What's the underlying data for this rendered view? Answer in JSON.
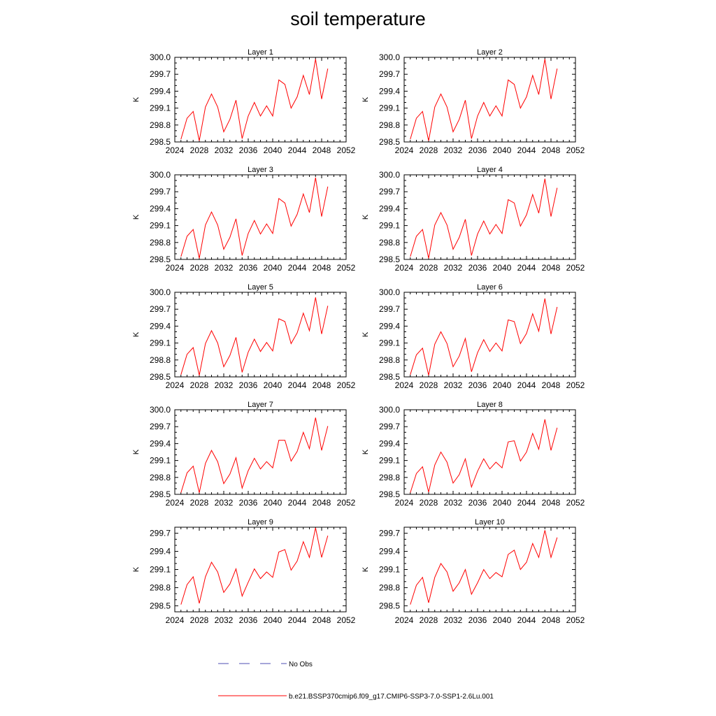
{
  "page": {
    "title": "soil temperature"
  },
  "colors": {
    "model_line": "#ff0000",
    "obs_line": "#4c4cb3",
    "axis": "#000000"
  },
  "legend": {
    "items": [
      {
        "label": "No Obs",
        "style": "dashed",
        "color": "#4c4cb3"
      },
      {
        "label": "b.e21.BSSP370cmip6.f09_g17.CMIP6-SSP3-7.0-SSP1-2.6Lu.001",
        "style": "solid",
        "color": "#ff0000"
      }
    ]
  },
  "chart_data": [
    {
      "type": "line",
      "title": "Layer 1",
      "ylabel": "K",
      "xlim": [
        2024,
        2052
      ],
      "ylim": [
        298.5,
        300.0
      ],
      "xticks": [
        "2024",
        "2028",
        "2032",
        "2036",
        "2040",
        "2044",
        "2048",
        "2052"
      ],
      "yticks": [
        "298.5",
        "298.8",
        "299.1",
        "299.4",
        "299.7",
        "300.0"
      ],
      "series": [
        {
          "x": [
            2025,
            2026,
            2027,
            2028,
            2029,
            2030,
            2031,
            2032,
            2033,
            2034,
            2035,
            2036,
            2037,
            2038,
            2039,
            2040,
            2041,
            2042,
            2043,
            2044,
            2045,
            2046,
            2047,
            2048,
            2049
          ],
          "y": [
            298.55,
            298.92,
            299.04,
            298.52,
            299.12,
            299.35,
            299.12,
            298.68,
            298.9,
            299.24,
            298.56,
            298.96,
            299.2,
            298.96,
            299.14,
            298.96,
            299.6,
            299.52,
            299.1,
            299.3,
            299.68,
            299.34,
            299.97,
            299.26,
            299.8
          ]
        }
      ]
    },
    {
      "type": "line",
      "title": "Layer 2",
      "ylabel": "K",
      "xlim": [
        2024,
        2052
      ],
      "ylim": [
        298.5,
        300.0
      ],
      "xticks": [
        "2024",
        "2028",
        "2032",
        "2036",
        "2040",
        "2044",
        "2048",
        "2052"
      ],
      "yticks": [
        "298.5",
        "298.8",
        "299.1",
        "299.4",
        "299.7",
        "300.0"
      ],
      "series": [
        {
          "x": [
            2025,
            2026,
            2027,
            2028,
            2029,
            2030,
            2031,
            2032,
            2033,
            2034,
            2035,
            2036,
            2037,
            2038,
            2039,
            2040,
            2041,
            2042,
            2043,
            2044,
            2045,
            2046,
            2047,
            2048,
            2049
          ],
          "y": [
            298.55,
            298.92,
            299.04,
            298.52,
            299.12,
            299.35,
            299.12,
            298.68,
            298.9,
            299.24,
            298.56,
            298.96,
            299.2,
            298.96,
            299.14,
            298.96,
            299.6,
            299.52,
            299.1,
            299.3,
            299.68,
            299.34,
            299.97,
            299.26,
            299.8
          ]
        }
      ]
    },
    {
      "type": "line",
      "title": "Layer 3",
      "ylabel": "K",
      "xlim": [
        2024,
        2052
      ],
      "ylim": [
        298.5,
        300.0
      ],
      "xticks": [
        "2024",
        "2028",
        "2032",
        "2036",
        "2040",
        "2044",
        "2048",
        "2052"
      ],
      "yticks": [
        "298.5",
        "298.8",
        "299.1",
        "299.4",
        "299.7",
        "300.0"
      ],
      "series": [
        {
          "x": [
            2025,
            2026,
            2027,
            2028,
            2029,
            2030,
            2031,
            2032,
            2033,
            2034,
            2035,
            2036,
            2037,
            2038,
            2039,
            2040,
            2041,
            2042,
            2043,
            2044,
            2045,
            2046,
            2047,
            2048,
            2049
          ],
          "y": [
            298.55,
            298.91,
            299.03,
            298.52,
            299.11,
            299.34,
            299.11,
            298.68,
            298.89,
            299.22,
            298.57,
            298.96,
            299.19,
            298.95,
            299.13,
            298.96,
            299.58,
            299.5,
            299.09,
            299.3,
            299.66,
            299.33,
            299.95,
            299.26,
            299.79
          ]
        }
      ]
    },
    {
      "type": "line",
      "title": "Layer 4",
      "ylabel": "K",
      "xlim": [
        2024,
        2052
      ],
      "ylim": [
        298.5,
        300.0
      ],
      "xticks": [
        "2024",
        "2028",
        "2032",
        "2036",
        "2040",
        "2044",
        "2048",
        "2052"
      ],
      "yticks": [
        "298.5",
        "298.8",
        "299.1",
        "299.4",
        "299.7",
        "300.0"
      ],
      "series": [
        {
          "x": [
            2025,
            2026,
            2027,
            2028,
            2029,
            2030,
            2031,
            2032,
            2033,
            2034,
            2035,
            2036,
            2037,
            2038,
            2039,
            2040,
            2041,
            2042,
            2043,
            2044,
            2045,
            2046,
            2047,
            2048,
            2049
          ],
          "y": [
            298.55,
            298.91,
            299.03,
            298.52,
            299.11,
            299.33,
            299.11,
            298.68,
            298.89,
            299.21,
            298.57,
            298.95,
            299.18,
            298.95,
            299.12,
            298.96,
            299.56,
            299.5,
            299.09,
            299.29,
            299.65,
            299.32,
            299.93,
            299.26,
            299.77
          ]
        }
      ]
    },
    {
      "type": "line",
      "title": "Layer 5",
      "ylabel": "K",
      "xlim": [
        2024,
        2052
      ],
      "ylim": [
        298.5,
        300.0
      ],
      "xticks": [
        "2024",
        "2028",
        "2032",
        "2036",
        "2040",
        "2044",
        "2048",
        "2052"
      ],
      "yticks": [
        "298.5",
        "298.8",
        "299.1",
        "299.4",
        "299.7",
        "300.0"
      ],
      "series": [
        {
          "x": [
            2025,
            2026,
            2027,
            2028,
            2029,
            2030,
            2031,
            2032,
            2033,
            2034,
            2035,
            2036,
            2037,
            2038,
            2039,
            2040,
            2041,
            2042,
            2043,
            2044,
            2045,
            2046,
            2047,
            2048,
            2049
          ],
          "y": [
            298.54,
            298.9,
            299.02,
            298.53,
            299.09,
            299.32,
            299.1,
            298.68,
            298.88,
            299.2,
            298.58,
            298.94,
            299.17,
            298.95,
            299.11,
            298.96,
            299.53,
            299.48,
            299.09,
            299.28,
            299.63,
            299.32,
            299.91,
            299.26,
            299.76
          ]
        }
      ]
    },
    {
      "type": "line",
      "title": "Layer 6",
      "ylabel": "K",
      "xlim": [
        2024,
        2052
      ],
      "ylim": [
        298.5,
        300.0
      ],
      "xticks": [
        "2024",
        "2028",
        "2032",
        "2036",
        "2040",
        "2044",
        "2048",
        "2052"
      ],
      "yticks": [
        "298.5",
        "298.8",
        "299.1",
        "299.4",
        "299.7",
        "300.0"
      ],
      "series": [
        {
          "x": [
            2025,
            2026,
            2027,
            2028,
            2029,
            2030,
            2031,
            2032,
            2033,
            2034,
            2035,
            2036,
            2037,
            2038,
            2039,
            2040,
            2041,
            2042,
            2043,
            2044,
            2045,
            2046,
            2047,
            2048,
            2049
          ],
          "y": [
            298.54,
            298.89,
            299.01,
            298.53,
            299.08,
            299.3,
            299.09,
            298.68,
            298.87,
            299.18,
            298.59,
            298.93,
            299.16,
            298.95,
            299.1,
            298.96,
            299.51,
            299.48,
            299.09,
            299.27,
            299.62,
            299.31,
            299.89,
            299.26,
            299.74
          ]
        }
      ]
    },
    {
      "type": "line",
      "title": "Layer 7",
      "ylabel": "K",
      "xlim": [
        2024,
        2052
      ],
      "ylim": [
        298.5,
        300.0
      ],
      "xticks": [
        "2024",
        "2028",
        "2032",
        "2036",
        "2040",
        "2044",
        "2048",
        "2052"
      ],
      "yticks": [
        "298.5",
        "298.8",
        "299.1",
        "299.4",
        "299.7",
        "300.0"
      ],
      "series": [
        {
          "x": [
            2025,
            2026,
            2027,
            2028,
            2029,
            2030,
            2031,
            2032,
            2033,
            2034,
            2035,
            2036,
            2037,
            2038,
            2039,
            2040,
            2041,
            2042,
            2043,
            2044,
            2045,
            2046,
            2047,
            2048,
            2049
          ],
          "y": [
            298.53,
            298.88,
            299.0,
            298.53,
            299.05,
            299.28,
            299.08,
            298.69,
            298.86,
            299.15,
            298.61,
            298.92,
            299.14,
            298.95,
            299.08,
            298.97,
            299.46,
            299.46,
            299.09,
            299.26,
            299.6,
            299.31,
            299.86,
            299.28,
            299.71
          ]
        }
      ]
    },
    {
      "type": "line",
      "title": "Layer 8",
      "ylabel": "K",
      "xlim": [
        2024,
        2052
      ],
      "ylim": [
        298.5,
        300.0
      ],
      "xticks": [
        "2024",
        "2028",
        "2032",
        "2036",
        "2040",
        "2044",
        "2048",
        "2052"
      ],
      "yticks": [
        "298.5",
        "298.8",
        "299.1",
        "299.4",
        "299.7",
        "300.0"
      ],
      "series": [
        {
          "x": [
            2025,
            2026,
            2027,
            2028,
            2029,
            2030,
            2031,
            2032,
            2033,
            2034,
            2035,
            2036,
            2037,
            2038,
            2039,
            2040,
            2041,
            2042,
            2043,
            2044,
            2045,
            2046,
            2047,
            2048,
            2049
          ],
          "y": [
            298.53,
            298.87,
            298.99,
            298.54,
            299.02,
            299.25,
            299.07,
            298.7,
            298.85,
            299.13,
            298.63,
            298.91,
            299.13,
            298.95,
            299.07,
            298.97,
            299.43,
            299.45,
            299.09,
            299.25,
            299.58,
            299.3,
            299.83,
            299.28,
            299.68
          ]
        }
      ]
    },
    {
      "type": "line",
      "title": "Layer 9",
      "ylabel": "K",
      "xlim": [
        2024,
        2052
      ],
      "ylim": [
        298.4,
        299.8
      ],
      "xticks": [
        "2024",
        "2028",
        "2032",
        "2036",
        "2040",
        "2044",
        "2048",
        "2052"
      ],
      "yticks": [
        "298.5",
        "298.8",
        "299.1",
        "299.4",
        "299.7"
      ],
      "series": [
        {
          "x": [
            2025,
            2026,
            2027,
            2028,
            2029,
            2030,
            2031,
            2032,
            2033,
            2034,
            2035,
            2036,
            2037,
            2038,
            2039,
            2040,
            2041,
            2042,
            2043,
            2044,
            2045,
            2046,
            2047,
            2048,
            2049
          ],
          "y": [
            298.52,
            298.85,
            298.98,
            298.54,
            298.98,
            299.22,
            299.06,
            298.72,
            298.86,
            299.11,
            298.66,
            298.89,
            299.11,
            298.95,
            299.06,
            298.97,
            299.39,
            299.43,
            299.09,
            299.24,
            299.56,
            299.3,
            299.79,
            299.3,
            299.66
          ]
        }
      ]
    },
    {
      "type": "line",
      "title": "Layer 10",
      "ylabel": "K",
      "xlim": [
        2024,
        2052
      ],
      "ylim": [
        298.4,
        299.8
      ],
      "xticks": [
        "2024",
        "2028",
        "2032",
        "2036",
        "2040",
        "2044",
        "2048",
        "2052"
      ],
      "yticks": [
        "298.5",
        "298.8",
        "299.1",
        "299.4",
        "299.7"
      ],
      "series": [
        {
          "x": [
            2025,
            2026,
            2027,
            2028,
            2029,
            2030,
            2031,
            2032,
            2033,
            2034,
            2035,
            2036,
            2037,
            2038,
            2039,
            2040,
            2041,
            2042,
            2043,
            2044,
            2045,
            2046,
            2047,
            2048,
            2049
          ],
          "y": [
            298.52,
            298.84,
            298.97,
            298.55,
            298.97,
            299.2,
            299.06,
            298.74,
            298.88,
            299.1,
            298.69,
            298.88,
            299.1,
            298.95,
            299.05,
            298.98,
            299.35,
            299.42,
            299.1,
            299.22,
            299.53,
            299.3,
            299.75,
            299.3,
            299.63
          ]
        }
      ]
    }
  ]
}
